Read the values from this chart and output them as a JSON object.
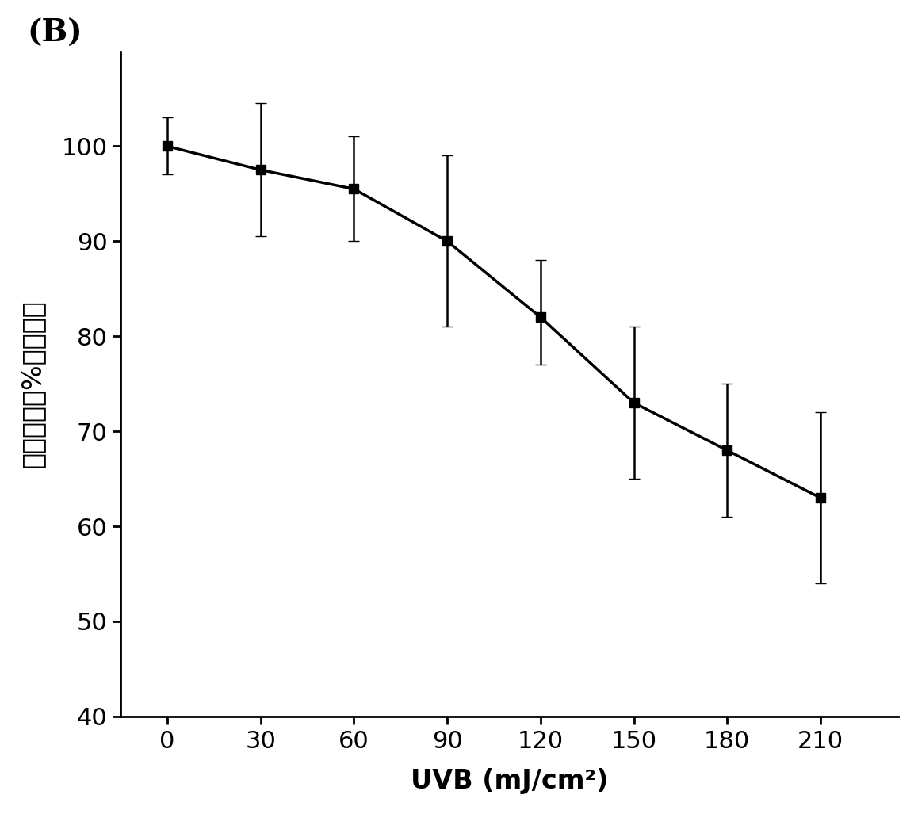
{
  "x": [
    0,
    30,
    60,
    90,
    120,
    150,
    180,
    210
  ],
  "y": [
    100,
    97.5,
    95.5,
    90,
    82,
    73,
    68,
    63
  ],
  "yerr_upper": [
    3,
    7,
    5.5,
    9,
    6,
    8,
    7,
    9
  ],
  "yerr_lower": [
    3,
    7,
    5.5,
    9,
    5,
    8,
    7,
    9
  ],
  "xlabel": "UVB (mJ/cm²)",
  "ylabel": "细胞增殖（%正常组）",
  "panel_label": "(B)",
  "xlim": [
    -15,
    235
  ],
  "ylim": [
    40,
    110
  ],
  "yticks": [
    40,
    50,
    60,
    70,
    80,
    90,
    100
  ],
  "xticks": [
    0,
    30,
    60,
    90,
    120,
    150,
    180,
    210
  ],
  "line_color": "#000000",
  "marker": "s",
  "markersize": 9,
  "linewidth": 2.5,
  "capsize": 5,
  "elinewidth": 1.8,
  "background_color": "#ffffff"
}
